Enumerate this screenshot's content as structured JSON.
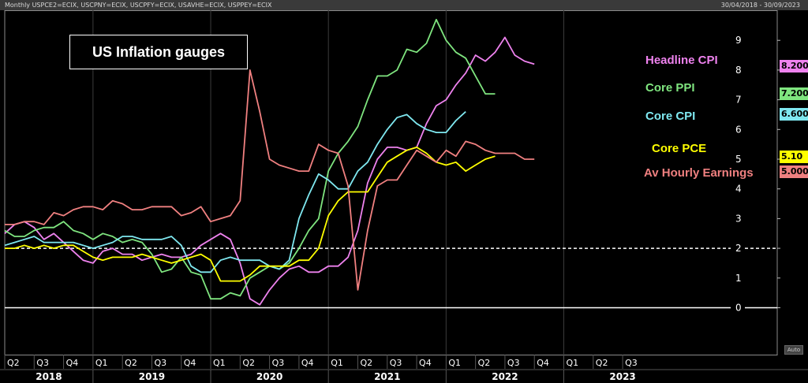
{
  "header": {
    "tickers": "Monthly USPCE2=ECIX, USCPNY=ECIX, USCPFY=ECIX, USAVHE=ECIX, USPPEY=ECIX",
    "range": "30/04/2018 - 30/09/2023"
  },
  "auto_label": "Auto",
  "chart_data": {
    "type": "line",
    "title": "US Inflation gauges",
    "ylim": [
      -1.5,
      10.3
    ],
    "yticks": [
      0,
      1,
      2,
      3,
      4,
      5,
      6,
      7,
      8,
      9
    ],
    "reference_lines": [
      {
        "value": 2,
        "style": "dashed",
        "color": "#ffffff"
      },
      {
        "value": 0,
        "style": "solid",
        "color": "#ffffff"
      }
    ],
    "x_start": "2018-04",
    "x_end": "2023-09",
    "quarter_labels": [
      "Q2",
      "Q3",
      "Q4",
      "Q1",
      "Q2",
      "Q3",
      "Q4",
      "Q1",
      "Q2",
      "Q3",
      "Q4",
      "Q1",
      "Q2",
      "Q3",
      "Q4",
      "Q1",
      "Q2",
      "Q3",
      "Q4",
      "Q1",
      "Q2",
      "Q3"
    ],
    "years": [
      "2018",
      "2019",
      "2020",
      "2021",
      "2022",
      "2023"
    ],
    "series": [
      {
        "name": "Headline CPI",
        "color": "#ee82ee",
        "last_value": "8.200",
        "values": [
          2.5,
          2.8,
          2.9,
          2.7,
          2.3,
          2.5,
          2.2,
          1.9,
          1.6,
          1.5,
          1.9,
          2.0,
          1.8,
          1.8,
          1.6,
          1.7,
          1.8,
          1.7,
          1.7,
          1.8,
          2.1,
          2.3,
          2.5,
          2.3,
          1.5,
          0.3,
          0.1,
          0.6,
          1.0,
          1.3,
          1.4,
          1.2,
          1.2,
          1.4,
          1.4,
          1.7,
          2.6,
          4.2,
          5.0,
          5.4,
          5.4,
          5.3,
          5.4,
          6.2,
          6.8,
          7.0,
          7.5,
          7.9,
          8.5,
          8.3,
          8.6,
          9.1,
          8.5,
          8.3,
          8.2
        ]
      },
      {
        "name": "Core PPI",
        "color": "#7fe57f",
        "last_value": "7.200",
        "values": [
          2.6,
          2.4,
          2.4,
          2.6,
          2.7,
          2.7,
          2.9,
          2.6,
          2.5,
          2.3,
          2.5,
          2.4,
          2.2,
          2.3,
          2.2,
          1.8,
          1.2,
          1.3,
          1.7,
          1.2,
          1.1,
          0.3,
          0.3,
          0.5,
          0.4,
          1.0,
          1.2,
          1.4,
          1.3,
          1.5,
          2.0,
          2.6,
          3.0,
          4.6,
          5.2,
          5.6,
          6.1,
          7.0,
          7.8,
          7.8,
          8.0,
          8.7,
          8.6,
          8.9,
          9.7,
          9.0,
          8.6,
          8.4,
          7.8,
          7.2,
          7.2
        ]
      },
      {
        "name": "Core CPI",
        "color": "#7fe8f0",
        "last_value": "6.600",
        "values": [
          2.1,
          2.2,
          2.3,
          2.4,
          2.2,
          2.2,
          2.2,
          2.2,
          2.1,
          2.0,
          2.1,
          2.2,
          2.4,
          2.4,
          2.3,
          2.3,
          2.3,
          2.4,
          2.1,
          1.4,
          1.2,
          1.2,
          1.6,
          1.7,
          1.6,
          1.6,
          1.6,
          1.4,
          1.3,
          1.6,
          3.0,
          3.8,
          4.5,
          4.3,
          4.0,
          4.0,
          4.6,
          4.9,
          5.5,
          6.0,
          6.4,
          6.5,
          6.2,
          6.0,
          5.9,
          5.9,
          6.3,
          6.6
        ]
      },
      {
        "name": "Core PCE",
        "color": "#ffff00",
        "last_value": "5.10",
        "values": [
          2.0,
          2.0,
          2.1,
          2.0,
          2.1,
          2.0,
          2.1,
          2.1,
          1.9,
          1.7,
          1.6,
          1.7,
          1.7,
          1.7,
          1.8,
          1.7,
          1.6,
          1.5,
          1.6,
          1.7,
          1.8,
          1.6,
          0.9,
          0.9,
          0.9,
          1.1,
          1.4,
          1.4,
          1.4,
          1.4,
          1.6,
          1.6,
          2.0,
          3.1,
          3.6,
          3.9,
          3.9,
          3.9,
          4.4,
          4.9,
          5.1,
          5.3,
          5.4,
          5.2,
          4.9,
          4.8,
          4.9,
          4.6,
          4.8,
          5.0,
          5.1
        ]
      },
      {
        "name": "Av Hourly Earnings",
        "color": "#f08080",
        "last_value": "5.000",
        "values": [
          2.8,
          2.8,
          2.9,
          2.9,
          2.8,
          3.2,
          3.1,
          3.3,
          3.4,
          3.4,
          3.3,
          3.6,
          3.5,
          3.3,
          3.3,
          3.4,
          3.4,
          3.4,
          3.1,
          3.2,
          3.4,
          2.9,
          3.0,
          3.1,
          3.6,
          8.0,
          6.6,
          5.0,
          4.8,
          4.7,
          4.6,
          4.6,
          5.5,
          5.3,
          5.2,
          4.1,
          0.6,
          2.6,
          4.1,
          4.3,
          4.3,
          4.8,
          5.3,
          5.1,
          4.9,
          5.3,
          5.1,
          5.6,
          5.5,
          5.3,
          5.2,
          5.2,
          5.2,
          5.0,
          5.0
        ]
      }
    ]
  }
}
